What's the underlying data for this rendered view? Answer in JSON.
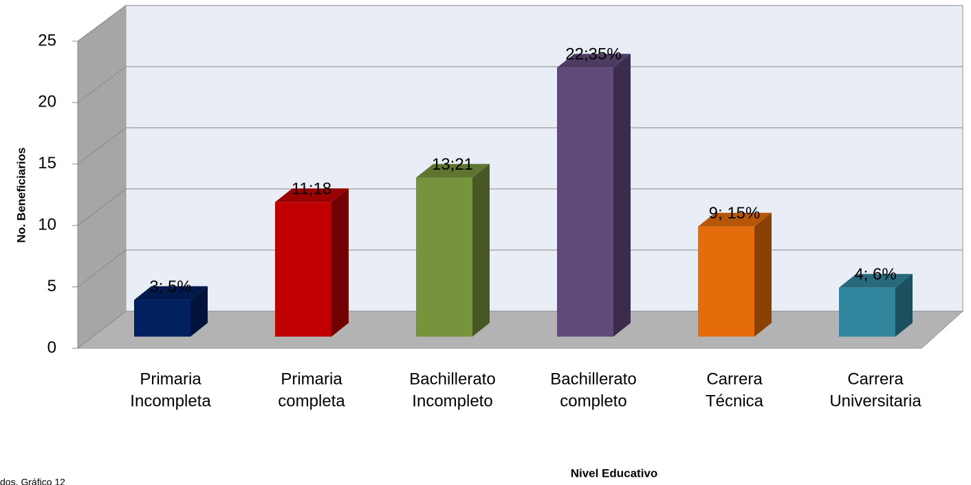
{
  "chart_data": {
    "type": "bar3d",
    "y_label": "No. Beneficiarios",
    "x_label": "Nivel Educativo",
    "note": "dos. Gráfico 12",
    "categories": [
      [
        "Primaria",
        "Incompleta"
      ],
      [
        "Primaria",
        "completa"
      ],
      [
        "Bachillerato",
        "Incompleto"
      ],
      [
        "Bachillerato",
        "completo"
      ],
      [
        "Carrera",
        "Técnica"
      ],
      [
        "Carrera",
        "Universitaria"
      ]
    ],
    "values": [
      3,
      11,
      13,
      22,
      9,
      4
    ],
    "value_labels": [
      "3; 5%",
      "11;18",
      "13;21",
      "22;35%",
      "9; 15%",
      "4; 6%"
    ],
    "colors": [
      "#002060",
      "#c00000",
      "#77933c",
      "#604a7b",
      "#e46c0a",
      "#31859c"
    ],
    "ylim": [
      0,
      25
    ],
    "yticks": [
      0,
      5,
      10,
      15,
      20,
      25
    ],
    "grid": true
  }
}
